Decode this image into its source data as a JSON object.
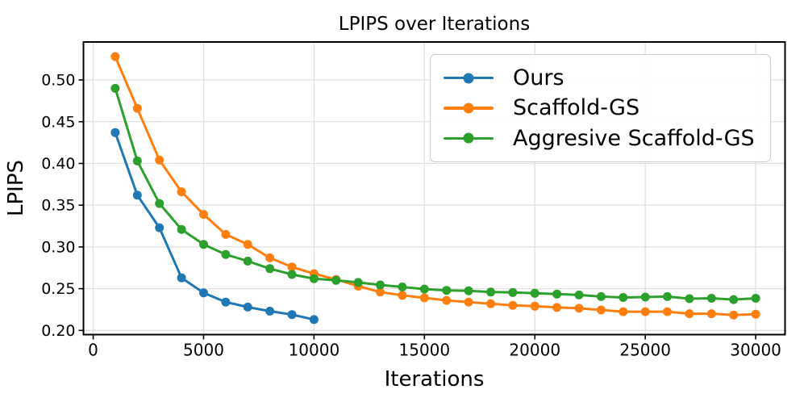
{
  "chart_data": {
    "type": "line",
    "title": "LPIPS over Iterations",
    "xlabel": "Iterations",
    "ylabel": "LPIPS",
    "xlim": [
      -440,
      31330
    ],
    "ylim": [
      0.195,
      0.5455
    ],
    "grid": true,
    "grid_color": "#e0e0e0",
    "axis_color": "#000000",
    "background_color": "#ffffff",
    "legend_position": "upper right",
    "marker": "circle",
    "x_ticks": [
      0,
      5000,
      10000,
      15000,
      20000,
      25000,
      30000
    ],
    "x_tick_labels": [
      "0",
      "5000",
      "10000",
      "15000",
      "20000",
      "25000",
      "30000"
    ],
    "y_ticks": [
      0.2,
      0.25,
      0.3,
      0.35,
      0.4,
      0.45,
      0.5
    ],
    "y_tick_labels": [
      "0.20",
      "0.25",
      "0.30",
      "0.35",
      "0.40",
      "0.45",
      "0.50"
    ],
    "series": [
      {
        "name": "Ours",
        "color": "#1f77b4",
        "x": [
          1000,
          2000,
          3000,
          4000,
          5000,
          6000,
          7000,
          8000,
          9000,
          10000
        ],
        "values": [
          0.437,
          0.362,
          0.323,
          0.263,
          0.245,
          0.234,
          0.228,
          0.223,
          0.219,
          0.213
        ]
      },
      {
        "name": "Scaffold-GS",
        "color": "#ff7f0e",
        "x": [
          1000,
          2000,
          3000,
          4000,
          5000,
          6000,
          7000,
          8000,
          9000,
          10000,
          11000,
          12000,
          13000,
          14000,
          15000,
          16000,
          17000,
          18000,
          19000,
          20000,
          21000,
          22000,
          23000,
          24000,
          25000,
          26000,
          27000,
          28000,
          29000,
          30000
        ],
        "values": [
          0.528,
          0.466,
          0.404,
          0.366,
          0.339,
          0.315,
          0.303,
          0.287,
          0.276,
          0.268,
          0.261,
          0.253,
          0.246,
          0.242,
          0.239,
          0.236,
          0.234,
          0.232,
          0.23,
          0.229,
          0.2275,
          0.2265,
          0.2245,
          0.2225,
          0.2225,
          0.2225,
          0.22,
          0.22,
          0.2185,
          0.2195
        ]
      },
      {
        "name": "Aggresive Scaffold-GS",
        "color": "#2ca02c",
        "x": [
          1000,
          2000,
          3000,
          4000,
          5000,
          6000,
          7000,
          8000,
          9000,
          10000,
          11000,
          12000,
          13000,
          14000,
          15000,
          16000,
          17000,
          18000,
          19000,
          20000,
          21000,
          22000,
          23000,
          24000,
          25000,
          26000,
          27000,
          28000,
          29000,
          30000
        ],
        "values": [
          0.49,
          0.403,
          0.352,
          0.321,
          0.303,
          0.291,
          0.283,
          0.274,
          0.267,
          0.262,
          0.26,
          0.2575,
          0.2545,
          0.252,
          0.2495,
          0.248,
          0.2475,
          0.246,
          0.2455,
          0.2445,
          0.2435,
          0.2425,
          0.2405,
          0.2395,
          0.24,
          0.2405,
          0.238,
          0.2385,
          0.237,
          0.2385
        ]
      }
    ]
  }
}
